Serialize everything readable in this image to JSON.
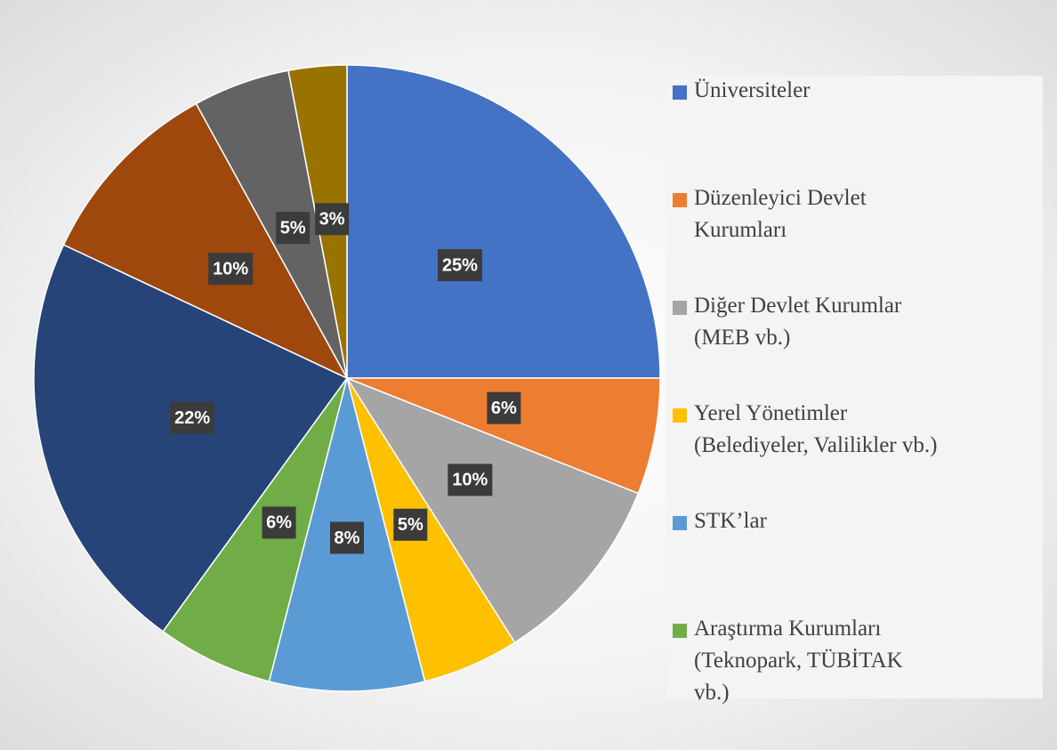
{
  "chart_data": {
    "type": "pie",
    "categories": [
      "Üniversiteler",
      "Düzenleyici Devlet\nKurumları",
      "Diğer Devlet Kurumlar\n(MEB vb.)",
      "Yerel Yönetimler\n(Belediyeler, Valilikler vb.)",
      "STK’lar",
      "Araştırma Kurumları\n(Teknopark, TÜBİTAK\nvb.)",
      null,
      null,
      null,
      null
    ],
    "values": [
      25,
      6,
      10,
      5,
      8,
      6,
      22,
      10,
      5,
      3
    ],
    "value_labels": [
      "25%",
      "6%",
      "10%",
      "5%",
      "8%",
      "6%",
      "22%",
      "10%",
      "5%",
      "3%"
    ],
    "colors": [
      "#4472c4",
      "#ed7d31",
      "#a5a5a5",
      "#ffc000",
      "#5b9bd5",
      "#70ad47",
      "#264478",
      "#9e480e",
      "#636363",
      "#997300"
    ]
  }
}
